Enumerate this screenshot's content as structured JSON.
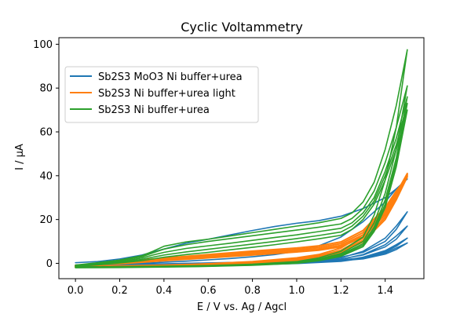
{
  "chart_data": {
    "type": "line",
    "title": "Cyclic Voltammetry",
    "xlabel": "E / V vs. Ag / Agcl",
    "ylabel": "I / μA",
    "xlim": [
      -0.075,
      1.575
    ],
    "ylim": [
      -7,
      103
    ],
    "xticks": [
      0.0,
      0.2,
      0.4,
      0.6,
      0.8,
      1.0,
      1.2,
      1.4
    ],
    "xtick_labels": [
      "0.0",
      "0.2",
      "0.4",
      "0.6",
      "0.8",
      "1.0",
      "1.2",
      "1.4"
    ],
    "yticks": [
      0,
      20,
      40,
      60,
      80,
      100
    ],
    "ytick_labels": [
      "0",
      "20",
      "40",
      "60",
      "80",
      "100"
    ],
    "grid": false,
    "legend_position": "upper-left",
    "series": [
      {
        "name": "Sb2S3 MoO3 Ni buffer+urea",
        "color": "#1f77b4",
        "cycles": [
          {
            "x": [
              0.0,
              0.1,
              0.2,
              0.3,
              0.4,
              0.5,
              0.6,
              0.7,
              0.8,
              0.9,
              1.0,
              1.1,
              1.2,
              1.3,
              1.4,
              1.45,
              1.5,
              1.45,
              1.4,
              1.3,
              1.2,
              1.1,
              1.0,
              0.9,
              0.8,
              0.7,
              0.6,
              0.5,
              0.4,
              0.3,
              0.2,
              0.1,
              0.0
            ],
            "y": [
              0.3,
              0.8,
              2.0,
              3.8,
              6.5,
              9.2,
              11.0,
              13.0,
              15.0,
              16.8,
              18.3,
              19.5,
              21.5,
              25.0,
              30.0,
              34.0,
              38.5,
              34.0,
              28.0,
              19.0,
              12.0,
              8.0,
              5.5,
              4.0,
              3.0,
              2.2,
              1.6,
              1.0,
              0.5,
              0.0,
              -0.5,
              -0.8,
              -1.0
            ]
          },
          {
            "x": [
              0.0,
              0.2,
              0.4,
              0.6,
              0.8,
              1.0,
              1.1,
              1.2,
              1.3,
              1.4,
              1.45,
              1.5,
              1.45,
              1.4,
              1.3,
              1.2,
              1.0,
              0.8,
              0.6,
              0.4,
              0.2,
              0.0
            ],
            "y": [
              -0.8,
              -0.5,
              -0.2,
              0.2,
              0.6,
              1.2,
              1.8,
              2.8,
              5.0,
              10.0,
              15.5,
              23.5,
              17.0,
              11.5,
              5.5,
              2.5,
              0.8,
              0.2,
              -0.3,
              -0.7,
              -1.0,
              -1.2
            ]
          },
          {
            "x": [
              0.0,
              0.2,
              0.4,
              0.6,
              0.8,
              1.0,
              1.1,
              1.2,
              1.3,
              1.4,
              1.45,
              1.5,
              1.45,
              1.4,
              1.3,
              1.2,
              1.0,
              0.8,
              0.6,
              0.4,
              0.2,
              0.0
            ],
            "y": [
              -1.0,
              -0.8,
              -0.5,
              -0.1,
              0.3,
              0.8,
              1.3,
              2.0,
              3.8,
              7.5,
              11.0,
              17.0,
              12.5,
              8.5,
              4.0,
              1.8,
              0.4,
              -0.1,
              -0.6,
              -1.0,
              -1.2,
              -1.3
            ]
          },
          {
            "x": [
              0.0,
              0.2,
              0.4,
              0.6,
              0.8,
              1.0,
              1.1,
              1.2,
              1.3,
              1.4,
              1.45,
              1.5,
              1.45,
              1.4,
              1.3,
              1.2,
              1.0,
              0.8,
              0.6,
              0.4,
              0.2,
              0.0
            ],
            "y": [
              -1.2,
              -1.0,
              -0.7,
              -0.3,
              0.1,
              0.5,
              0.9,
              1.5,
              2.6,
              5.2,
              7.8,
              11.5,
              8.5,
              5.8,
              2.8,
              1.2,
              0.1,
              -0.4,
              -0.8,
              -1.2,
              -1.4,
              -1.5
            ]
          },
          {
            "x": [
              0.0,
              0.2,
              0.4,
              0.6,
              0.8,
              1.0,
              1.1,
              1.2,
              1.3,
              1.4,
              1.45,
              1.5,
              1.45,
              1.4,
              1.3,
              1.2,
              1.0,
              0.8,
              0.6,
              0.4,
              0.2,
              0.0
            ],
            "y": [
              -1.3,
              -1.1,
              -0.8,
              -0.5,
              -0.1,
              0.3,
              0.7,
              1.2,
              2.0,
              4.2,
              6.3,
              9.3,
              7.0,
              4.8,
              2.3,
              0.9,
              -0.1,
              -0.6,
              -1.0,
              -1.3,
              -1.5,
              -1.6
            ]
          }
        ]
      },
      {
        "name": "Sb2S3 Ni buffer+urea light",
        "color": "#ff7f0e",
        "cycles": [
          {
            "x": [
              0.0,
              0.2,
              0.4,
              0.6,
              0.8,
              1.0,
              1.1,
              1.2,
              1.3,
              1.4,
              1.45,
              1.5,
              1.45,
              1.4,
              1.3,
              1.2,
              1.1,
              1.0,
              0.8,
              0.6,
              0.4,
              0.2,
              0.0
            ],
            "y": [
              -1.2,
              -0.2,
              1.2,
              2.5,
              3.8,
              5.2,
              6.0,
              7.5,
              12.0,
              22.0,
              30.0,
              41.0,
              32.0,
              24.0,
              13.0,
              7.0,
              4.0,
              2.5,
              0.8,
              -0.2,
              -0.8,
              -1.2,
              -1.5
            ]
          },
          {
            "x": [
              0.0,
              0.2,
              0.4,
              0.6,
              0.8,
              1.0,
              1.1,
              1.2,
              1.3,
              1.4,
              1.45,
              1.5,
              1.45,
              1.4,
              1.3,
              1.2,
              1.1,
              1.0,
              0.8,
              0.6,
              0.4,
              0.2,
              0.0
            ],
            "y": [
              -1.0,
              0.1,
              1.6,
              3.0,
              4.4,
              5.8,
              6.6,
              8.2,
              13.0,
              23.0,
              31.0,
              40.5,
              31.0,
              22.5,
              11.5,
              6.0,
              3.4,
              2.0,
              0.4,
              -0.5,
              -1.0,
              -1.4,
              -1.6
            ]
          },
          {
            "x": [
              0.0,
              0.2,
              0.4,
              0.6,
              0.8,
              1.0,
              1.1,
              1.2,
              1.3,
              1.4,
              1.45,
              1.5,
              1.45,
              1.4,
              1.3,
              1.2,
              1.1,
              1.0,
              0.8,
              0.6,
              0.4,
              0.2,
              0.0
            ],
            "y": [
              -1.1,
              0.4,
              2.0,
              3.5,
              5.0,
              6.4,
              7.3,
              9.0,
              14.0,
              24.5,
              32.0,
              40.0,
              30.0,
              21.0,
              10.5,
              5.5,
              3.0,
              1.6,
              0.1,
              -0.7,
              -1.1,
              -1.5,
              -1.7
            ]
          },
          {
            "x": [
              0.0,
              0.2,
              0.4,
              0.6,
              0.8,
              1.0,
              1.1,
              1.2,
              1.3,
              1.4,
              1.45,
              1.5,
              1.45,
              1.4,
              1.3,
              1.2,
              1.1,
              1.0,
              0.8,
              0.6,
              0.4,
              0.2,
              0.0
            ],
            "y": [
              -0.9,
              0.7,
              2.4,
              4.0,
              5.6,
              7.0,
              8.0,
              9.8,
              15.0,
              25.5,
              33.0,
              39.5,
              29.0,
              20.0,
              9.8,
              5.0,
              2.6,
              1.3,
              -0.1,
              -0.8,
              -1.2,
              -1.6,
              -1.8
            ]
          }
        ]
      },
      {
        "name": "Sb2S3 Ni buffer+urea",
        "color": "#2ca02c",
        "cycles": [
          {
            "x": [
              0.0,
              0.1,
              0.2,
              0.3,
              0.35,
              0.4,
              0.5,
              0.6,
              0.7,
              0.8,
              0.9,
              1.0,
              1.1,
              1.2,
              1.25,
              1.3,
              1.35,
              1.4,
              1.45,
              1.5,
              1.45,
              1.4,
              1.35,
              1.3,
              1.2,
              1.1,
              1.0,
              0.8,
              0.6,
              0.4,
              0.2,
              0.0
            ],
            "y": [
              -0.8,
              0.3,
              1.5,
              3.5,
              5.5,
              7.8,
              9.8,
              11.0,
              12.5,
              14.0,
              15.5,
              17.0,
              18.5,
              20.5,
              23.0,
              28.0,
              37.0,
              52.0,
              72.0,
              97.5,
              62.0,
              38.0,
              22.0,
              12.0,
              5.5,
              2.5,
              0.8,
              -0.4,
              -1.0,
              -1.3,
              -1.5,
              -1.6
            ]
          },
          {
            "x": [
              0.0,
              0.1,
              0.2,
              0.3,
              0.35,
              0.4,
              0.5,
              0.6,
              0.7,
              0.8,
              0.9,
              1.0,
              1.1,
              1.2,
              1.25,
              1.3,
              1.35,
              1.4,
              1.45,
              1.5,
              1.45,
              1.4,
              1.35,
              1.3,
              1.2,
              1.1,
              1.0,
              0.8,
              0.6,
              0.4,
              0.2,
              0.0
            ],
            "y": [
              -1.0,
              0.0,
              1.2,
              3.0,
              4.8,
              6.5,
              8.5,
              10.0,
              11.3,
              12.6,
              13.9,
              15.2,
              16.5,
              18.0,
              20.5,
              25.0,
              33.0,
              46.0,
              62.0,
              81.0,
              52.0,
              32.0,
              18.5,
              10.0,
              4.5,
              2.0,
              0.5,
              -0.6,
              -1.1,
              -1.4,
              -1.6,
              -1.7
            ]
          },
          {
            "x": [
              0.0,
              0.1,
              0.2,
              0.3,
              0.35,
              0.4,
              0.5,
              0.6,
              0.7,
              0.8,
              0.9,
              1.0,
              1.1,
              1.2,
              1.25,
              1.3,
              1.35,
              1.4,
              1.45,
              1.5,
              1.45,
              1.4,
              1.35,
              1.3,
              1.2,
              1.1,
              1.0,
              0.8,
              0.6,
              0.4,
              0.2,
              0.0
            ],
            "y": [
              -1.2,
              -0.3,
              0.8,
              2.4,
              3.8,
              5.0,
              6.8,
              8.0,
              9.2,
              10.5,
              11.8,
              13.0,
              14.5,
              16.0,
              18.5,
              23.0,
              30.0,
              42.0,
              57.0,
              76.0,
              48.0,
              29.0,
              16.5,
              9.0,
              4.0,
              1.7,
              0.3,
              -0.7,
              -1.2,
              -1.5,
              -1.7,
              -1.8
            ]
          },
          {
            "x": [
              0.0,
              0.1,
              0.2,
              0.3,
              0.35,
              0.4,
              0.5,
              0.6,
              0.7,
              0.8,
              0.9,
              1.0,
              1.1,
              1.2,
              1.25,
              1.3,
              1.35,
              1.4,
              1.45,
              1.5,
              1.45,
              1.4,
              1.35,
              1.3,
              1.2,
              1.1,
              1.0,
              0.8,
              0.6,
              0.4,
              0.2,
              0.0
            ],
            "y": [
              -1.3,
              -0.5,
              0.5,
              1.8,
              2.8,
              3.8,
              5.2,
              6.4,
              7.6,
              8.8,
              10.0,
              11.3,
              12.7,
              14.3,
              17.0,
              21.5,
              28.5,
              40.0,
              54.0,
              73.0,
              46.0,
              27.0,
              15.5,
              8.3,
              3.6,
              1.4,
              0.1,
              -0.8,
              -1.3,
              -1.6,
              -1.8,
              -1.9
            ]
          },
          {
            "x": [
              0.0,
              0.1,
              0.2,
              0.3,
              0.35,
              0.4,
              0.5,
              0.6,
              0.7,
              0.8,
              0.9,
              1.0,
              1.1,
              1.2,
              1.25,
              1.3,
              1.35,
              1.4,
              1.45,
              1.5,
              1.45,
              1.4,
              1.35,
              1.3,
              1.2,
              1.1,
              1.0,
              0.8,
              0.6,
              0.4,
              0.2,
              0.0
            ],
            "y": [
              -1.4,
              -0.7,
              0.2,
              1.2,
              2.0,
              2.8,
              4.0,
              5.0,
              6.2,
              7.3,
              8.5,
              9.8,
              11.2,
              12.8,
              15.5,
              20.0,
              27.0,
              38.0,
              52.0,
              70.0,
              44.0,
              25.5,
              14.5,
              7.6,
              3.2,
              1.2,
              0.0,
              -0.9,
              -1.4,
              -1.7,
              -1.9,
              -2.0
            ]
          }
        ]
      }
    ]
  }
}
